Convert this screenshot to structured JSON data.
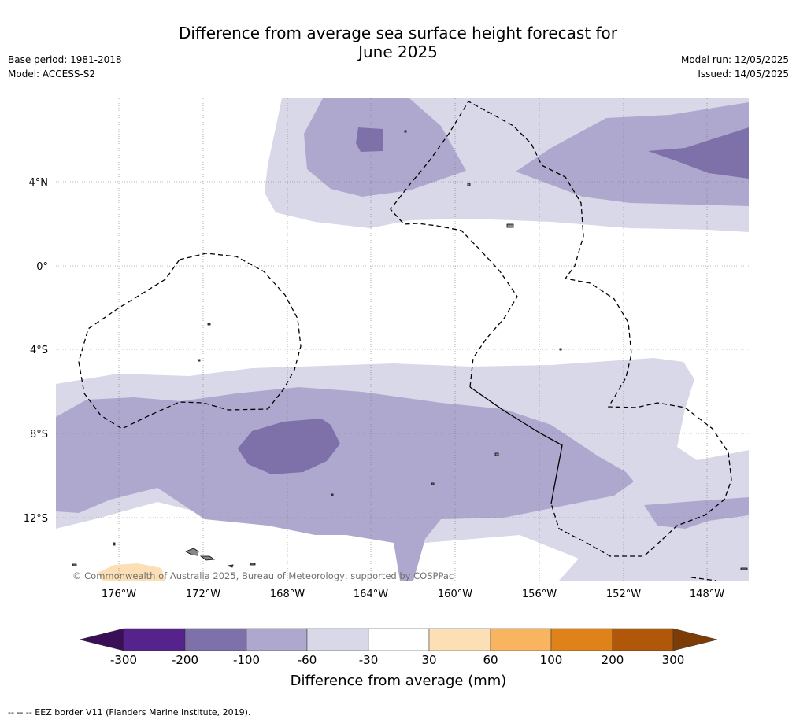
{
  "title_line1": "Difference from average sea surface height forecast for",
  "title_line2": "June 2025",
  "meta_left": {
    "base_period": "Base period: 1981-2018",
    "model": "Model: ACCESS-S2"
  },
  "meta_right": {
    "model_run": "Model run: 12/05/2025",
    "issued": "Issued: 14/05/2025"
  },
  "map": {
    "lat_labels": [
      "4°N",
      "0°",
      "4°S",
      "8°S",
      "12°S"
    ],
    "lon_labels": [
      "176°W",
      "172°W",
      "168°W",
      "164°W",
      "160°W",
      "156°W",
      "152°W",
      "148°W"
    ],
    "copyright": "© Commonwealth of Australia 2025, Bureau of Meteorology, supported by COSPPac"
  },
  "colorbar": {
    "title": "Difference from average (mm)",
    "tick_labels": [
      "-300",
      "-200",
      "-100",
      "-60",
      "-30",
      "30",
      "60",
      "100",
      "200",
      "300"
    ],
    "colors": [
      "#3b0f57",
      "#56228b",
      "#7e71aa",
      "#aea8cf",
      "#d8d8e9",
      "#ffffff",
      "#fddfb5",
      "#f8b45e",
      "#e0821a",
      "#b05709",
      "#7d3b06"
    ]
  },
  "footer": "--  --  -- EEZ border V11 (Flanders Marine Institute, 2019)."
}
